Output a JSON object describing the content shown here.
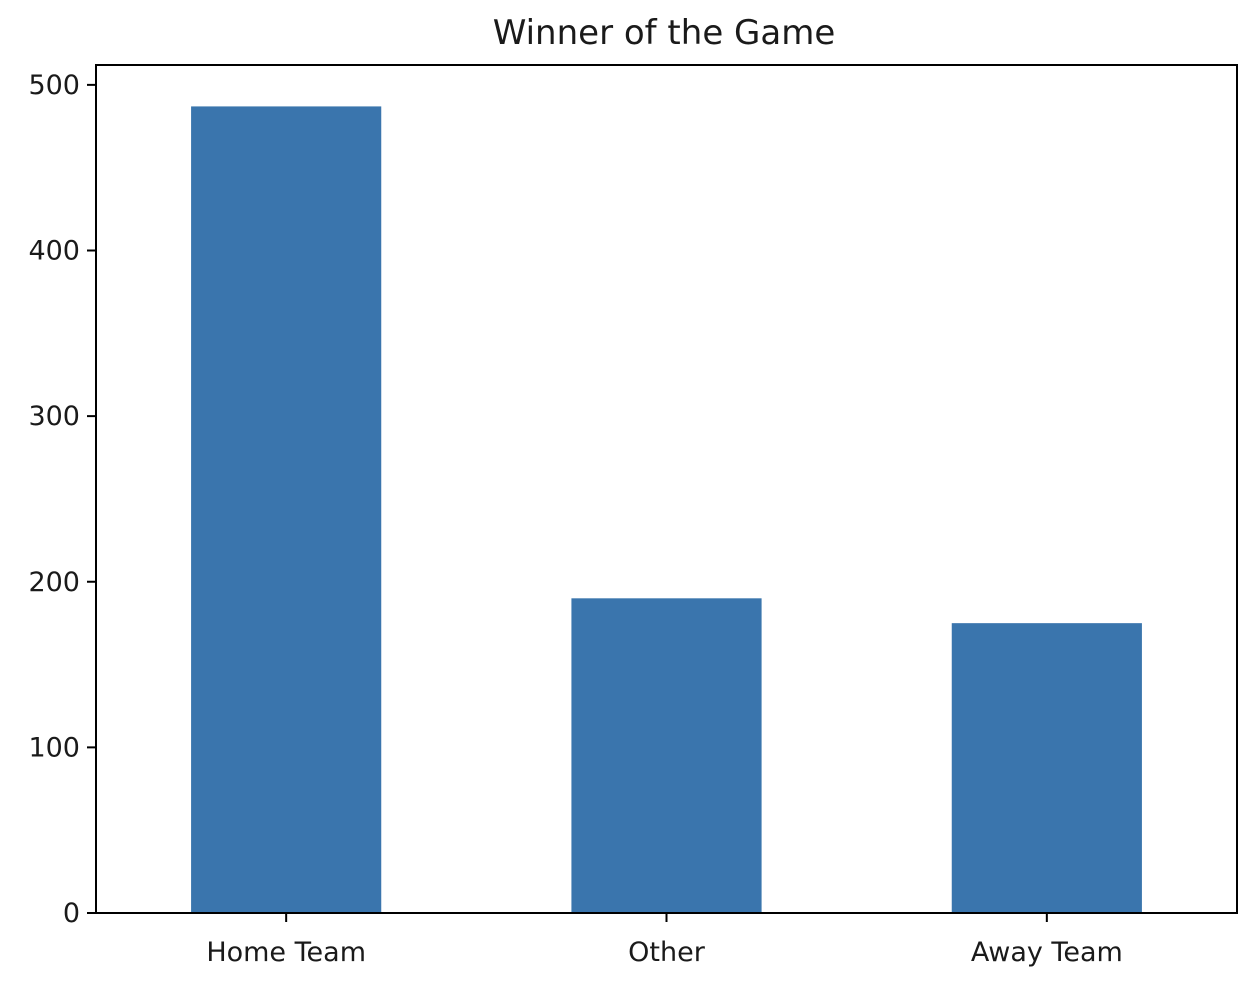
{
  "chart_data": {
    "type": "bar",
    "title": "Winner of the Game",
    "xlabel": "",
    "ylabel": "",
    "categories": [
      "Home Team",
      "Other",
      "Away Team"
    ],
    "values": [
      487,
      190,
      175
    ],
    "ylim": [
      0,
      512
    ],
    "yticks": [
      0,
      100,
      200,
      300,
      400,
      500
    ],
    "grid": false,
    "legend": "none",
    "colors": {
      "bar": "#3a75ad",
      "axis": "#000000",
      "text": "#1a1a1a",
      "background": "#ffffff"
    }
  }
}
